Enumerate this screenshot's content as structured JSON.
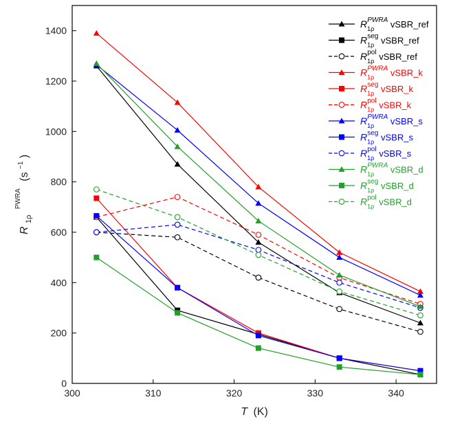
{
  "chart_data": {
    "type": "line",
    "x": [
      303,
      313,
      323,
      333,
      343
    ],
    "xlim": [
      300,
      345
    ],
    "ylim": [
      0,
      1500
    ],
    "xticks": [
      300,
      310,
      320,
      330,
      340
    ],
    "yticks": [
      0,
      200,
      400,
      600,
      800,
      1000,
      1200,
      1400
    ],
    "grid": false,
    "legend_position": "top-right",
    "xlabel": {
      "main": "T",
      "unit": "(K)"
    },
    "ylabel": {
      "main": "R",
      "sub": "1ρ",
      "sup": "PWRA",
      "unit": "(s",
      "unit_exp": "−1",
      "unit_close": ")"
    },
    "series": [
      {
        "key": "pwra_ref",
        "sup": "PWRA",
        "suffix": " vSBR_ref",
        "color": "#000000",
        "marker": "triangle",
        "dashed": false,
        "values": [
          1260,
          870,
          560,
          360,
          240
        ]
      },
      {
        "key": "seg_ref",
        "sup": "seg",
        "suffix": " vSBR_ref",
        "color": "#000000",
        "marker": "square",
        "dashed": false,
        "values": [
          660,
          290,
          195,
          100,
          35
        ]
      },
      {
        "key": "pol_ref",
        "sup": "pol",
        "suffix": " vSBR_ref",
        "color": "#000000",
        "marker": "circle",
        "dashed": true,
        "values": [
          600,
          580,
          420,
          295,
          205
        ]
      },
      {
        "key": "pwra_k",
        "sup": "PWRA",
        "suffix": " vSBR_k",
        "color": "#ff0000",
        "marker": "triangle",
        "dashed": false,
        "values": [
          1390,
          1115,
          780,
          520,
          365
        ]
      },
      {
        "key": "seg_k",
        "sup": "seg",
        "suffix": " vSBR_k",
        "color": "#ff0000",
        "marker": "square",
        "dashed": false,
        "values": [
          735,
          380,
          200,
          100,
          50
        ]
      },
      {
        "key": "pol_k",
        "sup": "pol",
        "suffix": " vSBR_k",
        "color": "#ff0000",
        "marker": "circle",
        "dashed": true,
        "values": [
          660,
          740,
          590,
          420,
          315
        ]
      },
      {
        "key": "pwra_s",
        "sup": "PWRA",
        "suffix": " vSBR_s",
        "color": "#0000ff",
        "marker": "triangle",
        "dashed": false,
        "values": [
          1265,
          1005,
          715,
          500,
          350
        ]
      },
      {
        "key": "seg_s",
        "sup": "seg",
        "suffix": " vSBR_s",
        "color": "#0000ff",
        "marker": "square",
        "dashed": false,
        "values": [
          665,
          380,
          190,
          100,
          50
        ]
      },
      {
        "key": "pol_s",
        "sup": "pol",
        "suffix": " vSBR_s",
        "color": "#0000ff",
        "marker": "circle",
        "dashed": true,
        "values": [
          600,
          630,
          530,
          400,
          300
        ]
      },
      {
        "key": "pwra_d",
        "sup": "PWRA",
        "suffix": " vSBR_d",
        "color": "#22a02a",
        "marker": "triangle",
        "dashed": false,
        "values": [
          1270,
          940,
          645,
          430,
          305
        ]
      },
      {
        "key": "seg_d",
        "sup": "seg",
        "suffix": " vSBR_d",
        "color": "#22a02a",
        "marker": "square",
        "dashed": false,
        "values": [
          500,
          280,
          140,
          65,
          35
        ]
      },
      {
        "key": "pol_d",
        "sup": "pol",
        "suffix": " vSBR_d",
        "color": "#22a02a",
        "marker": "circle",
        "dashed": true,
        "values": [
          770,
          660,
          510,
          365,
          270
        ]
      }
    ]
  }
}
